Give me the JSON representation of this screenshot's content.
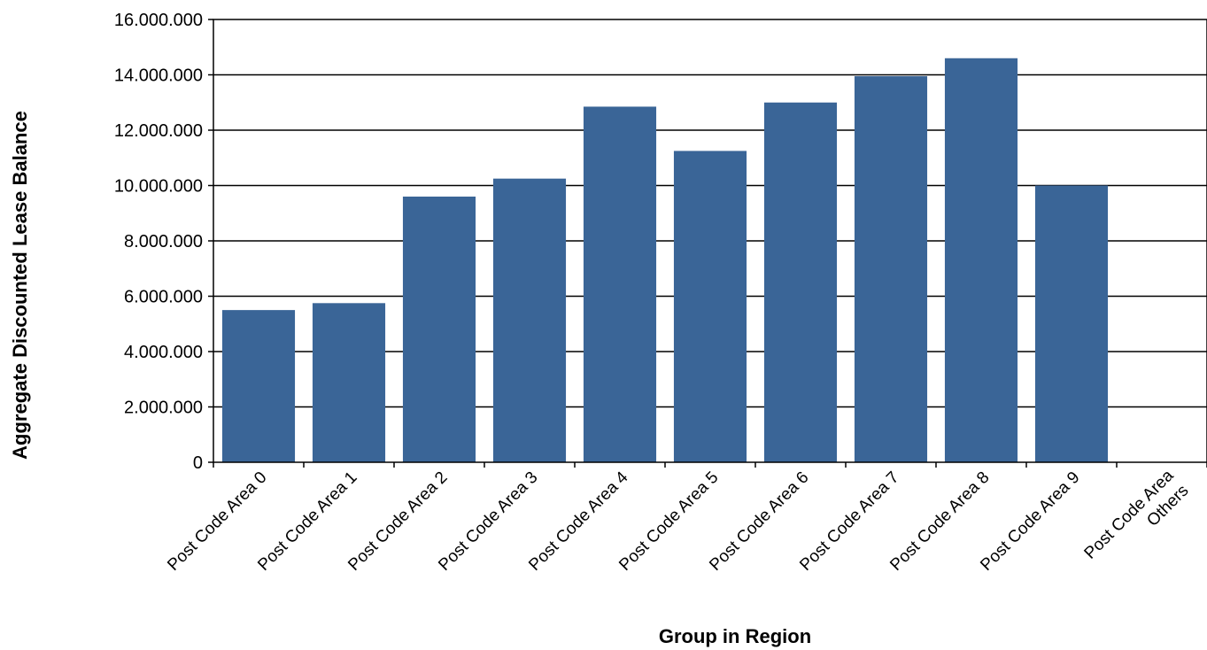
{
  "chart_data": {
    "type": "bar",
    "title": "",
    "xlabel": "Group in Region",
    "ylabel": "Aggregate Discounted Lease Balance",
    "ylim": [
      0,
      16000000
    ],
    "yticks": [
      "0",
      "2.000.000",
      "4.000.000",
      "6.000.000",
      "8.000.000",
      "10.000.000",
      "12.000.000",
      "14.000.000",
      "16.000.000"
    ],
    "categories": [
      [
        "Post Code Area 0"
      ],
      [
        "Post Code Area 1"
      ],
      [
        "Post Code Area 2"
      ],
      [
        "Post Code Area 3"
      ],
      [
        "Post Code Area 4"
      ],
      [
        "Post Code Area 5"
      ],
      [
        "Post Code Area 6"
      ],
      [
        "Post Code Area 7"
      ],
      [
        "Post Code Area 8"
      ],
      [
        "Post Code Area 9"
      ],
      [
        "Post Code Area",
        "Others"
      ]
    ],
    "values": [
      5500000,
      5750000,
      9600000,
      10250000,
      12850000,
      11250000,
      13000000,
      13950000,
      14600000,
      10000000,
      0
    ],
    "grid": true,
    "bar_color": "#3a6597"
  }
}
